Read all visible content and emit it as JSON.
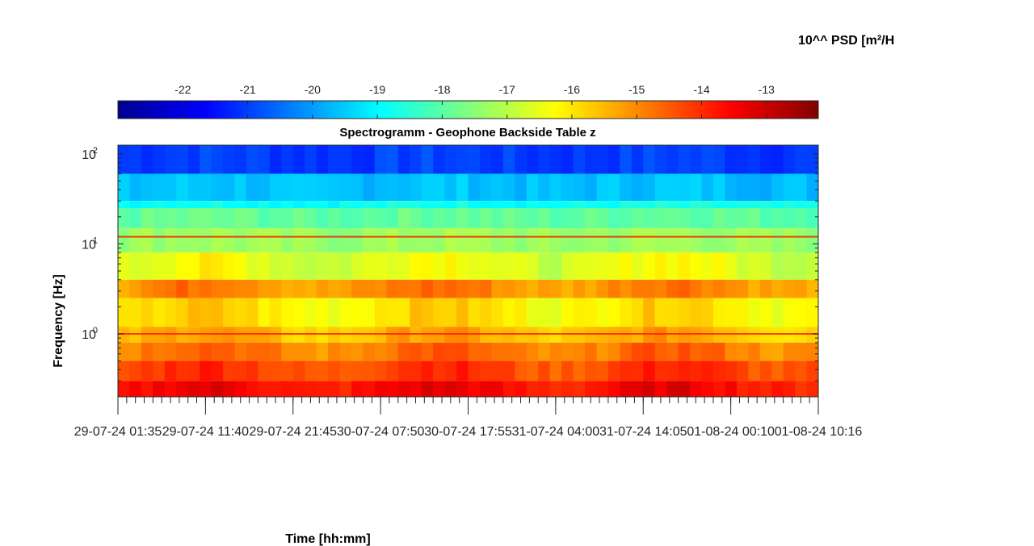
{
  "colorbar": {
    "label": "10^^ PSD [m²/H",
    "range": [
      -23,
      -12.2
    ],
    "ticks": [
      -22,
      -21,
      -20,
      -19,
      -18,
      -17,
      -16,
      -15,
      -14,
      -13
    ],
    "colormap": "jet",
    "stops": [
      "#00008f",
      "#0000ff",
      "#0080ff",
      "#00ffff",
      "#80ff80",
      "#ffff00",
      "#ff8000",
      "#ff0000",
      "#800000"
    ]
  },
  "chart_data": {
    "type": "heatmap",
    "title": "Spectrogramm - Geophone Backside Table z",
    "xlabel": "Time [hh:mm]",
    "ylabel": "Frequency [Hz]",
    "yscale": "log",
    "ylim": [
      0.2,
      125
    ],
    "y_ticks": [
      {
        "value": 1,
        "base": "10",
        "exp": "0"
      },
      {
        "value": 10,
        "base": "10",
        "exp": "1"
      },
      {
        "value": 100,
        "base": "10",
        "exp": "2"
      }
    ],
    "x_ticks": [
      "29-07-24 01:35",
      "29-07-24 11:40",
      "29-07-24 21:45",
      "30-07-24 07:50",
      "30-07-24 17:55",
      "31-07-24 04:00",
      "31-07-24 14:05",
      "01-08-24 00:10",
      "01-08-24 10:16"
    ],
    "value_range": [
      -23,
      -12.2
    ],
    "frequency_bands": [
      {
        "f_low": 60,
        "f_high": 125,
        "value": -21.0
      },
      {
        "f_low": 30,
        "f_high": 60,
        "value": -19.6
      },
      {
        "f_low": 25,
        "f_high": 30,
        "value": -18.8
      },
      {
        "f_low": 15,
        "f_high": 25,
        "value": -17.9
      },
      {
        "f_low": 8,
        "f_high": 15,
        "value": -17.3
      },
      {
        "f_low": 4,
        "f_high": 8,
        "value": -16.5
      },
      {
        "f_low": 2.5,
        "f_high": 4,
        "value": -15.0
      },
      {
        "f_low": 1.2,
        "f_high": 2.5,
        "value": -16.0
      },
      {
        "f_low": 0.8,
        "f_high": 1.2,
        "value": -15.5
      },
      {
        "f_low": 0.5,
        "f_high": 0.8,
        "value": -14.8
      },
      {
        "f_low": 0.3,
        "f_high": 0.5,
        "value": -14.2
      },
      {
        "f_low": 0.2,
        "f_high": 0.3,
        "value": -13.6
      }
    ],
    "tonal_lines": [
      {
        "frequency": 12,
        "value": -13.8
      },
      {
        "frequency": 1.0,
        "value": -13.9
      }
    ]
  }
}
